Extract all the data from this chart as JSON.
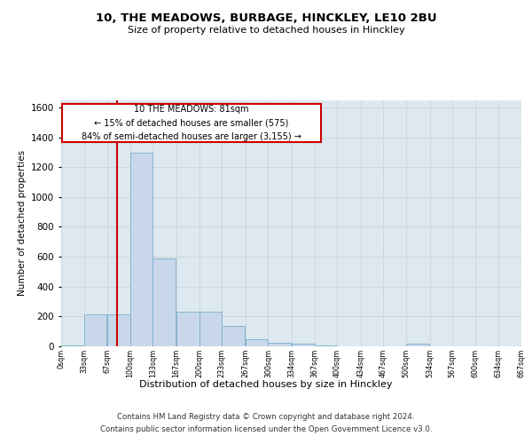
{
  "title": "10, THE MEADOWS, BURBAGE, HINCKLEY, LE10 2BU",
  "subtitle": "Size of property relative to detached houses in Hinckley",
  "xlabel": "Distribution of detached houses by size in Hinckley",
  "ylabel": "Number of detached properties",
  "footer_line1": "Contains HM Land Registry data © Crown copyright and database right 2024.",
  "footer_line2": "Contains public sector information licensed under the Open Government Licence v3.0.",
  "annotation_line1": "10 THE MEADOWS: 81sqm",
  "annotation_line2": "← 15% of detached houses are smaller (575)",
  "annotation_line3": "84% of semi-detached houses are larger (3,155) →",
  "property_size": 81,
  "bar_color": "#c8d8ea",
  "bar_edge_color": "#7aaec8",
  "vline_color": "#cc0000",
  "annotation_box_color": "#cc0000",
  "background_color": "#ffffff",
  "grid_color": "#c8d0d8",
  "bin_edges": [
    0,
    33,
    67,
    100,
    133,
    167,
    200,
    233,
    267,
    300,
    334,
    367,
    400,
    434,
    467,
    500,
    534,
    567,
    600,
    634,
    667
  ],
  "bar_heights": [
    8,
    215,
    215,
    1295,
    590,
    230,
    230,
    135,
    50,
    25,
    20,
    5,
    0,
    0,
    0,
    20,
    0,
    0,
    0,
    0
  ],
  "tick_labels": [
    "0sqm",
    "33sqm",
    "67sqm",
    "100sqm",
    "133sqm",
    "167sqm",
    "200sqm",
    "233sqm",
    "267sqm",
    "300sqm",
    "334sqm",
    "367sqm",
    "400sqm",
    "434sqm",
    "467sqm",
    "500sqm",
    "534sqm",
    "567sqm",
    "600sqm",
    "634sqm",
    "667sqm"
  ],
  "ylim": [
    0,
    1650
  ],
  "xlim": [
    0,
    667
  ]
}
